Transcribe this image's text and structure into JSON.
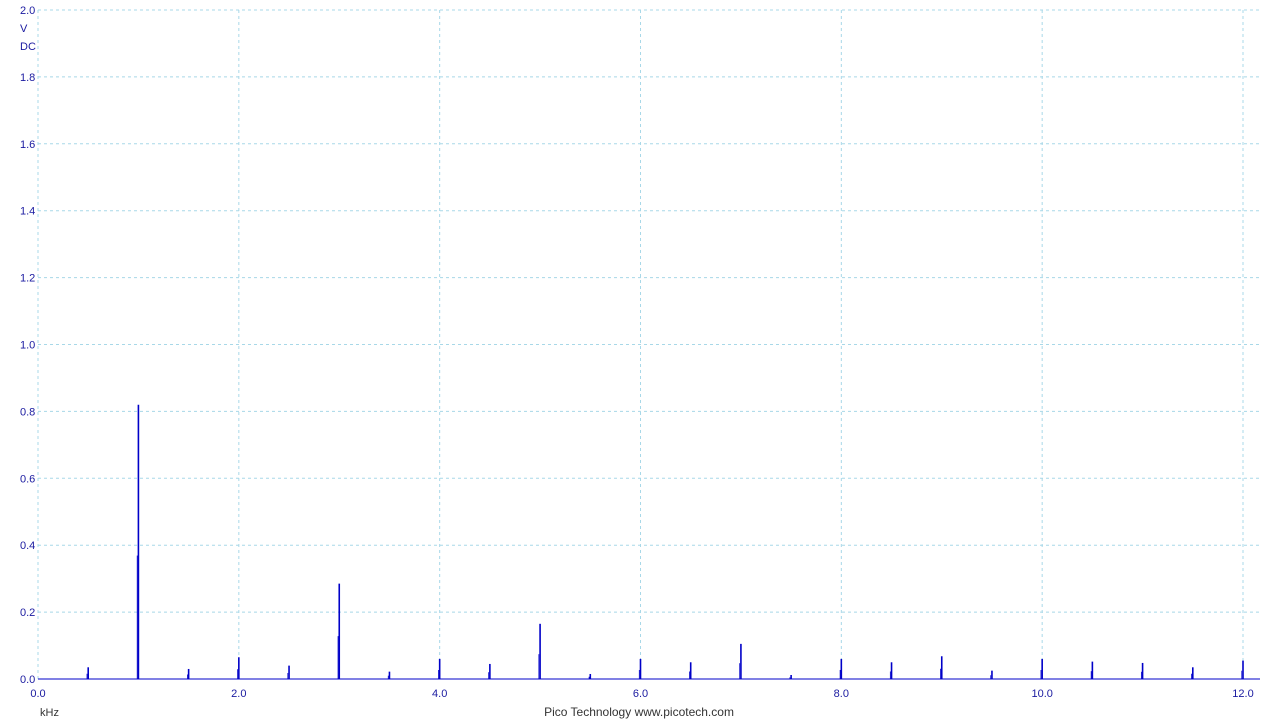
{
  "chart_data": {
    "type": "bar",
    "y_unit": "V",
    "y_coupling": "DC",
    "x_unit": "kHz",
    "xlim": [
      0,
      12.0
    ],
    "ylim": [
      0,
      2.0
    ],
    "x_ticks": [
      "0.0",
      "2.0",
      "4.0",
      "6.0",
      "8.0",
      "10.0",
      "12.0"
    ],
    "y_ticks": [
      "0.0",
      "0.2",
      "0.4",
      "0.6",
      "0.8",
      "1.0",
      "1.2",
      "1.4",
      "1.6",
      "1.8",
      "2.0"
    ],
    "grid": true,
    "series": [
      {
        "x": [
          0.5,
          1.0,
          1.5,
          2.0,
          2.5,
          3.0,
          3.5,
          4.0,
          4.5,
          5.0,
          5.5,
          6.0,
          6.5,
          7.0,
          7.5,
          8.0,
          8.5,
          9.0,
          9.5,
          10.0,
          10.5,
          11.0,
          11.5,
          12.0
        ],
        "values": [
          0.035,
          0.82,
          0.03,
          0.065,
          0.04,
          0.285,
          0.022,
          0.06,
          0.045,
          0.165,
          0.015,
          0.06,
          0.05,
          0.105,
          0.012,
          0.06,
          0.05,
          0.068,
          0.025,
          0.06,
          0.052,
          0.048,
          0.035,
          0.055
        ]
      }
    ]
  },
  "footer": {
    "credit": "Pico Technology   www.picotech.com"
  },
  "colors": {
    "trace": "#0000c8",
    "grid": "#a8d8e8",
    "axis_text": "#1a1aa0",
    "footer_text": "#333333"
  }
}
